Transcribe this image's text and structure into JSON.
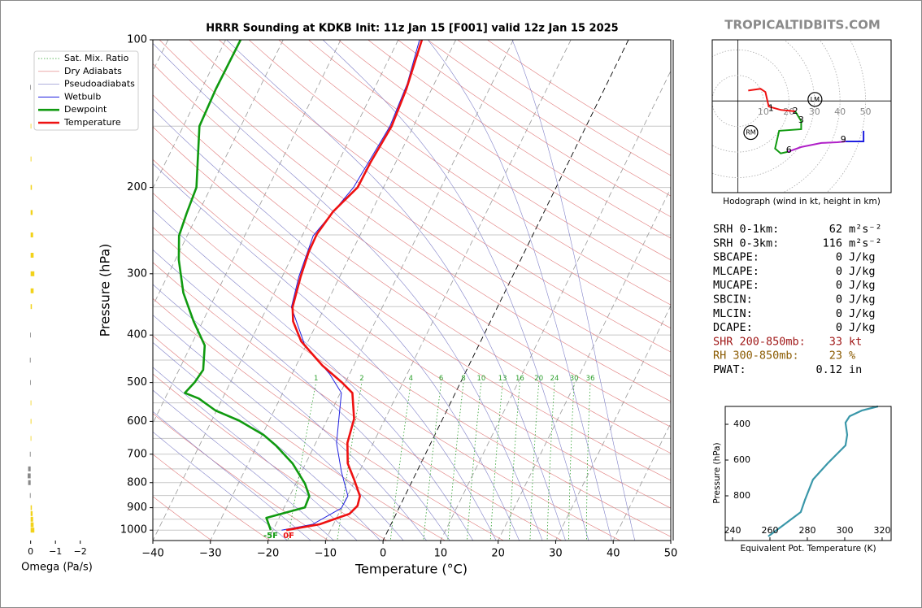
{
  "watermark": "TROPICALTIDBITS.COM",
  "chart_data": [
    {
      "type": "skewt",
      "title": "HRRR Sounding at KDKB Init: 11z Jan 15 [F001] valid 12z Jan 15 2025",
      "x_label": "Temperature (°C)",
      "y_label": "Pressure (hPa)",
      "xlim": [
        -40,
        50
      ],
      "xticks": [
        {
          "value": -40,
          "label": "−40"
        },
        {
          "value": -30,
          "label": "−30"
        },
        {
          "value": -20,
          "label": "−20"
        },
        {
          "value": -10,
          "label": "−10"
        },
        0,
        10,
        20,
        30,
        40,
        50
      ],
      "ylim": [
        1050,
        100
      ],
      "log_y": true,
      "yticks": [
        100,
        200,
        300,
        400,
        500,
        600,
        700,
        800,
        900,
        1000
      ],
      "minor_yticks": [
        150,
        250,
        350,
        450,
        550,
        650,
        750,
        850,
        950
      ],
      "grid": true,
      "background": [
        {
          "name": "Sat. Mix. Ratio",
          "color": "#2ca02c"
        },
        {
          "name": "Dry Adiabats",
          "color": "#e07a7a"
        },
        {
          "name": "Pseudoadiabats",
          "color": "#8080c8"
        }
      ],
      "mixing_ratios": [
        1,
        2,
        4,
        6,
        8,
        10,
        13,
        16,
        20,
        24,
        30,
        36
      ],
      "series": [
        {
          "name": "Wetbulb",
          "color": "#1f1fe0",
          "pressure": [
            1000,
            973,
            902,
            852,
            760,
            664,
            525,
            480,
            420,
            351,
            304,
            251,
            200,
            150,
            123,
            100
          ],
          "values": [
            -18.5,
            -13.6,
            -10.0,
            -9.9,
            -13.1,
            -16.4,
            -19.8,
            -23.5,
            -30.2,
            -35.8,
            -37.1,
            -38.1,
            -35.2,
            -34.1,
            -34.7,
            -36.3
          ]
        },
        {
          "name": "Dewpoint",
          "color": "#109a10",
          "pressure": [
            1000,
            944,
            899,
            852,
            804,
            731,
            672,
            640,
            598,
            570,
            539,
            525,
            499,
            471,
            420,
            375,
            328,
            281,
            251,
            226,
            200,
            150,
            126,
            100
          ],
          "values": [
            -20.4,
            -22.2,
            -16.4,
            -16.6,
            -18.4,
            -22.3,
            -26.7,
            -29.7,
            -35.2,
            -40.2,
            -44.1,
            -47.0,
            -46.2,
            -45.8,
            -47.6,
            -51.6,
            -55.8,
            -59.4,
            -61.4,
            -62.0,
            -62.5,
            -67.2,
            -67.5,
            -67.4
          ]
        },
        {
          "name": "Temperature",
          "color": "#ee1111",
          "pressure": [
            1000,
            973,
            926,
            892,
            852,
            789,
            731,
            664,
            593,
            525,
            499,
            462,
            412,
            375,
            351,
            304,
            271,
            249,
            224,
            200,
            178,
            150,
            126,
            100
          ],
          "values": [
            -17.7,
            -12.4,
            -8.1,
            -7.4,
            -7.8,
            -10.2,
            -12.7,
            -14.5,
            -15.4,
            -17.9,
            -20.7,
            -25.4,
            -31.2,
            -34.3,
            -35.6,
            -36.8,
            -37.5,
            -37.6,
            -36.7,
            -34.5,
            -34.4,
            -33.8,
            -34.4,
            -35.9
          ]
        }
      ],
      "surface_labels": [
        "-5F",
        "0F"
      ]
    },
    {
      "type": "hodograph",
      "caption": "Hodograph (wind in kt, height in km)",
      "xlim": [
        -10,
        60
      ],
      "ylim": [
        -36,
        24
      ],
      "rings": [
        10,
        20,
        30,
        40,
        50
      ],
      "segments": [
        {
          "color": "#ee1111",
          "u": [
            4.1,
            8.9,
            10.8,
            12.1,
            16.8,
            22.5
          ],
          "v": [
            4.1,
            4.8,
            3.5,
            -2.2,
            -3.5,
            -4.1
          ]
        },
        {
          "color": "#109a10",
          "u": [
            22.5,
            24.8,
            24.8,
            16.2,
            14.6,
            16.8,
            19.4
          ],
          "v": [
            -4.1,
            -7.9,
            -11.1,
            -11.7,
            -18.7,
            -20.6,
            -20.0
          ]
        },
        {
          "color": "#b020c8",
          "u": [
            19.4,
            24.8,
            32.7,
            39.0,
            42.2
          ],
          "v": [
            -20.0,
            -18.1,
            -16.5,
            -16.2,
            -15.9
          ]
        },
        {
          "color": "#1f1fe0",
          "u": [
            42.2,
            49.2,
            49.2
          ],
          "v": [
            -15.9,
            -15.9,
            -11.7
          ]
        }
      ],
      "heights": [
        1,
        2,
        3,
        6,
        9
      ],
      "height_u": [
        13.0,
        22.5,
        24.8,
        20.0,
        41.3
      ],
      "height_v": [
        -2.9,
        -4.1,
        -7.6,
        -19.4,
        -15.2
      ],
      "storm_motion": [
        {
          "label": "LM",
          "u": 30.2,
          "v": 0.6
        },
        {
          "label": "RM",
          "u": 5.1,
          "v": -12.4
        }
      ]
    },
    {
      "type": "line",
      "x_label": "Equivalent Pot. Temperature (K)",
      "y_label": "Pressure (hPa)",
      "xlim": [
        236.1,
        324.8
      ],
      "xticks": [
        240,
        260,
        280,
        300,
        320
      ],
      "ylim": [
        1050,
        300
      ],
      "yticks": [
        400,
        600,
        800
      ],
      "series": [
        {
          "color": "#3a97a9",
          "pressure": [
            300,
            323,
            355,
            391,
            459,
            518,
            618,
            709,
            823,
            891,
            959,
            1027
          ],
          "values": [
            317.8,
            309.1,
            302.6,
            300.4,
            301.3,
            300.4,
            290.9,
            283.0,
            278.7,
            276.5,
            267.8,
            259.1
          ]
        }
      ]
    },
    {
      "type": "omega",
      "x_label": "Omega (Pa/s)",
      "xlim": [
        0.35,
        -2.6
      ],
      "xticks": [
        0,
        {
          "value": -1,
          "label": "−1"
        },
        {
          "value": -2,
          "label": "−2"
        }
      ],
      "positive_color": "#888888",
      "negative_color": "#f2d21a",
      "pressure": [
        1000,
        975,
        950,
        925,
        900,
        850,
        800,
        775,
        750,
        700,
        650,
        600,
        550,
        500,
        450,
        400,
        350,
        325,
        300,
        275,
        250,
        225,
        200,
        175,
        150,
        125
      ],
      "values": [
        -0.15,
        -0.12,
        -0.1,
        -0.08,
        -0.05,
        0.03,
        0.1,
        0.12,
        0.1,
        0.03,
        -0.02,
        -0.03,
        -0.02,
        0.02,
        0.03,
        0.02,
        -0.05,
        -0.12,
        -0.15,
        -0.12,
        -0.1,
        -0.08,
        -0.05,
        -0.03,
        -0.02,
        0.02
      ]
    }
  ],
  "stats": [
    {
      "label": "SRH 0-1km:",
      "value": 62,
      "unit": "m²s⁻²"
    },
    {
      "label": "SRH 0-3km:",
      "value": 116,
      "unit": "m²s⁻²"
    },
    {
      "label": "SBCAPE:",
      "value": 0,
      "unit": "J/kg"
    },
    {
      "label": "MLCAPE:",
      "value": 0,
      "unit": "J/kg"
    },
    {
      "label": "MUCAPE:",
      "value": 0,
      "unit": "J/kg"
    },
    {
      "label": "SBCIN:",
      "value": 0,
      "unit": "J/kg"
    },
    {
      "label": "MLCIN:",
      "value": 0,
      "unit": "J/kg"
    },
    {
      "label": "DCAPE:",
      "value": 0,
      "unit": "J/kg"
    },
    {
      "label": "SHR 200-850mb:",
      "value": 33,
      "unit": "kt",
      "color": "#a01818"
    },
    {
      "label": "RH 300-850mb:",
      "value": 23,
      "unit": "%",
      "color": "#8a5a00"
    },
    {
      "label": "PWAT:",
      "value": 0.12,
      "unit": "in"
    }
  ]
}
